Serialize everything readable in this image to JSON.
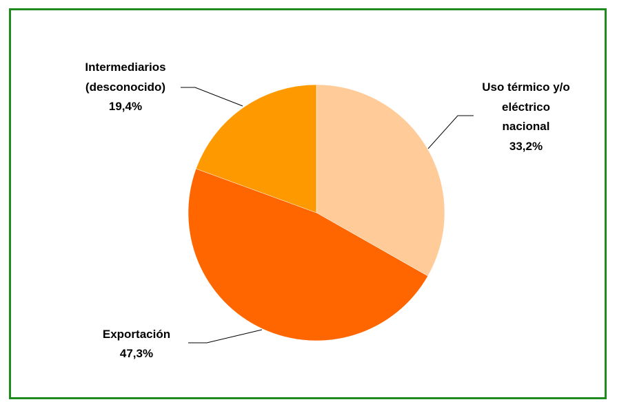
{
  "chart_data": {
    "type": "pie",
    "title": "",
    "slices": [
      {
        "label_lines": [
          "Uso térmico y/o",
          "eléctrico",
          "nacional"
        ],
        "value_label": "33,2%",
        "value": 33.2,
        "color": "#ffcc99"
      },
      {
        "label_lines": [
          "Exportación"
        ],
        "value_label": "47,3%",
        "value": 47.3,
        "color": "#ff6600"
      },
      {
        "label_lines": [
          "Intermediarios",
          "(desconocido)"
        ],
        "value_label": "19,4%",
        "value": 19.4,
        "color": "#ff9900"
      }
    ],
    "legend": "none",
    "frame_color": "#1f8a1f"
  }
}
